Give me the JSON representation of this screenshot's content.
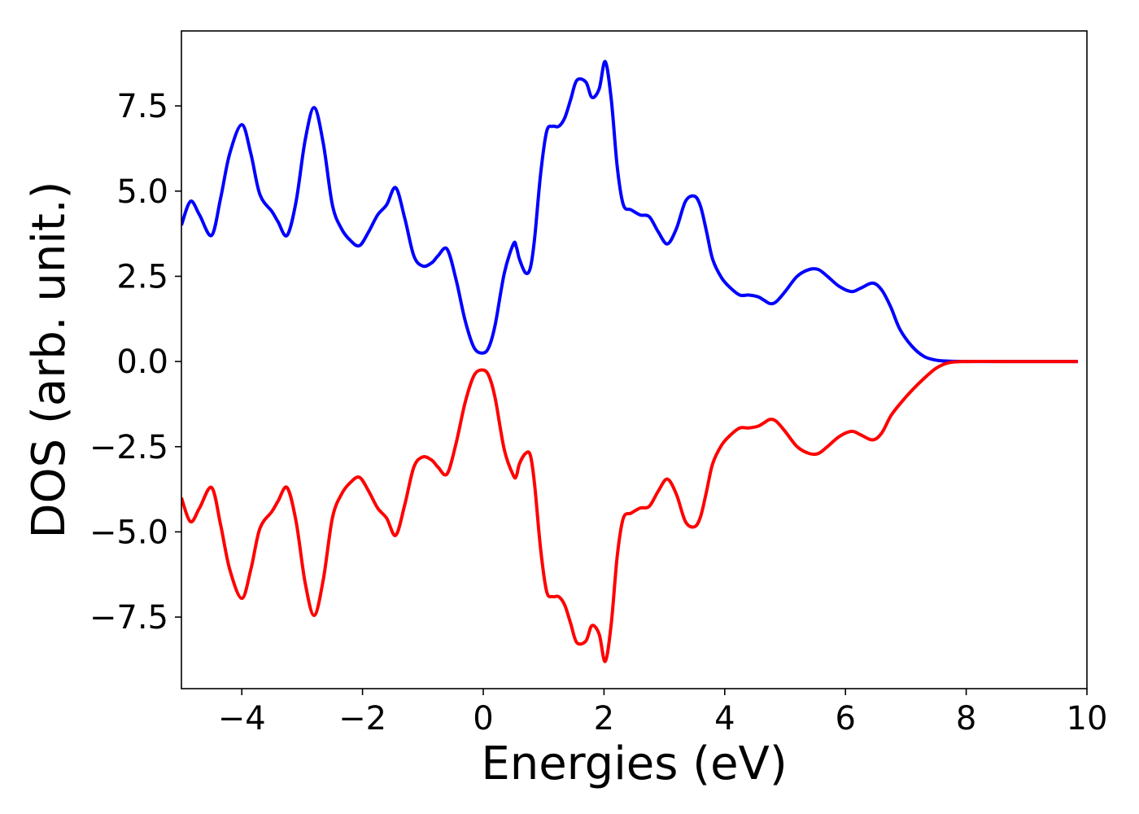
{
  "chart_data": {
    "type": "line",
    "title": "",
    "xlabel": "Energies (eV)",
    "ylabel": "DOS (arb. unit.)",
    "xlim": [
      -5,
      10
    ],
    "ylim": [
      -9.6,
      9.7
    ],
    "xticks": [
      -4,
      -2,
      0,
      2,
      4,
      6,
      8,
      10
    ],
    "xtick_labels": [
      "−4",
      "−2",
      "0",
      "2",
      "4",
      "6",
      "8",
      "10"
    ],
    "yticks": [
      -7.5,
      -5.0,
      -2.5,
      0.0,
      2.5,
      5.0,
      7.5
    ],
    "ytick_labels": [
      "−7.5",
      "−5.0",
      "−2.5",
      "0.0",
      "2.5",
      "5.0",
      "7.5"
    ],
    "grid": false,
    "legend": "none",
    "series": [
      {
        "color": "#0000ff",
        "x": [
          -5.0,
          -4.85,
          -4.7,
          -4.5,
          -4.35,
          -4.2,
          -4.0,
          -3.85,
          -3.7,
          -3.5,
          -3.4,
          -3.25,
          -3.1,
          -2.95,
          -2.8,
          -2.65,
          -2.5,
          -2.35,
          -2.2,
          -2.05,
          -1.9,
          -1.75,
          -1.6,
          -1.45,
          -1.3,
          -1.15,
          -1.0,
          -0.85,
          -0.75,
          -0.6,
          -0.45,
          -0.3,
          -0.15,
          0.0,
          0.1,
          0.2,
          0.35,
          0.5,
          0.55,
          0.6,
          0.7,
          0.78,
          0.85,
          0.95,
          1.05,
          1.15,
          1.25,
          1.35,
          1.45,
          1.55,
          1.7,
          1.8,
          1.92,
          2.02,
          2.12,
          2.22,
          2.32,
          2.45,
          2.6,
          2.75,
          2.9,
          3.05,
          3.2,
          3.35,
          3.5,
          3.6,
          3.7,
          3.8,
          3.95,
          4.1,
          4.25,
          4.4,
          4.55,
          4.65,
          4.75,
          4.85,
          5.0,
          5.2,
          5.4,
          5.55,
          5.7,
          5.9,
          6.1,
          6.25,
          6.45,
          6.6,
          6.75,
          6.9,
          7.1,
          7.3,
          7.5,
          7.7,
          8.0,
          8.5,
          9.0,
          9.5,
          9.85
        ],
        "y": [
          4.0,
          4.7,
          4.3,
          3.7,
          4.8,
          6.1,
          6.95,
          6.1,
          4.9,
          4.4,
          4.1,
          3.7,
          4.7,
          6.5,
          7.45,
          6.4,
          4.6,
          3.9,
          3.55,
          3.4,
          3.8,
          4.3,
          4.6,
          5.1,
          4.2,
          3.1,
          2.8,
          2.9,
          3.1,
          3.3,
          2.4,
          1.2,
          0.4,
          0.25,
          0.45,
          1.1,
          2.6,
          3.45,
          3.35,
          3.0,
          2.6,
          2.75,
          3.6,
          5.5,
          6.75,
          6.9,
          6.9,
          7.15,
          7.7,
          8.25,
          8.2,
          7.75,
          8.0,
          8.8,
          7.7,
          5.7,
          4.6,
          4.45,
          4.3,
          4.25,
          3.8,
          3.45,
          3.9,
          4.7,
          4.85,
          4.55,
          3.8,
          3.0,
          2.45,
          2.15,
          1.95,
          1.95,
          1.9,
          1.8,
          1.7,
          1.75,
          2.05,
          2.5,
          2.7,
          2.7,
          2.5,
          2.2,
          2.05,
          2.15,
          2.3,
          2.1,
          1.6,
          0.95,
          0.45,
          0.15,
          0.04,
          0.01,
          0.0,
          0.0,
          0.0,
          0.0,
          0.0
        ]
      },
      {
        "color": "#ff0000",
        "x": [
          -5.0,
          -4.85,
          -4.7,
          -4.5,
          -4.35,
          -4.2,
          -4.0,
          -3.85,
          -3.7,
          -3.5,
          -3.4,
          -3.25,
          -3.1,
          -2.95,
          -2.8,
          -2.65,
          -2.5,
          -2.35,
          -2.2,
          -2.05,
          -1.9,
          -1.75,
          -1.6,
          -1.45,
          -1.3,
          -1.15,
          -1.0,
          -0.85,
          -0.75,
          -0.6,
          -0.45,
          -0.3,
          -0.15,
          0.0,
          0.1,
          0.2,
          0.35,
          0.5,
          0.55,
          0.6,
          0.7,
          0.78,
          0.85,
          0.95,
          1.05,
          1.15,
          1.25,
          1.35,
          1.45,
          1.55,
          1.7,
          1.8,
          1.92,
          2.02,
          2.12,
          2.22,
          2.32,
          2.45,
          2.6,
          2.75,
          2.9,
          3.05,
          3.2,
          3.35,
          3.5,
          3.6,
          3.7,
          3.8,
          3.95,
          4.1,
          4.25,
          4.4,
          4.55,
          4.65,
          4.75,
          4.85,
          5.0,
          5.2,
          5.4,
          5.55,
          5.7,
          5.9,
          6.1,
          6.25,
          6.45,
          6.6,
          6.75,
          6.9,
          7.1,
          7.3,
          7.5,
          7.7,
          8.0,
          8.5,
          9.0,
          9.5,
          9.85
        ],
        "y": [
          -4.0,
          -4.7,
          -4.3,
          -3.7,
          -4.8,
          -6.1,
          -6.95,
          -6.1,
          -4.9,
          -4.4,
          -4.1,
          -3.7,
          -4.7,
          -6.5,
          -7.45,
          -6.4,
          -4.6,
          -3.9,
          -3.55,
          -3.4,
          -3.8,
          -4.3,
          -4.6,
          -5.1,
          -4.2,
          -3.1,
          -2.8,
          -2.9,
          -3.1,
          -3.3,
          -2.4,
          -1.2,
          -0.4,
          -0.25,
          -0.45,
          -1.1,
          -2.6,
          -3.35,
          -3.35,
          -3.0,
          -2.7,
          -2.75,
          -3.6,
          -5.5,
          -6.75,
          -6.9,
          -6.9,
          -7.15,
          -7.7,
          -8.25,
          -8.2,
          -7.75,
          -8.0,
          -8.8,
          -7.7,
          -5.7,
          -4.6,
          -4.45,
          -4.3,
          -4.25,
          -3.8,
          -3.45,
          -3.9,
          -4.7,
          -4.85,
          -4.55,
          -3.8,
          -3.0,
          -2.45,
          -2.15,
          -1.95,
          -1.95,
          -1.9,
          -1.8,
          -1.7,
          -1.75,
          -2.05,
          -2.5,
          -2.7,
          -2.7,
          -2.5,
          -2.2,
          -2.05,
          -2.15,
          -2.3,
          -2.1,
          -1.6,
          -1.25,
          -0.85,
          -0.5,
          -0.2,
          -0.04,
          0.0,
          0.0,
          0.0,
          0.0,
          0.0
        ]
      }
    ]
  }
}
